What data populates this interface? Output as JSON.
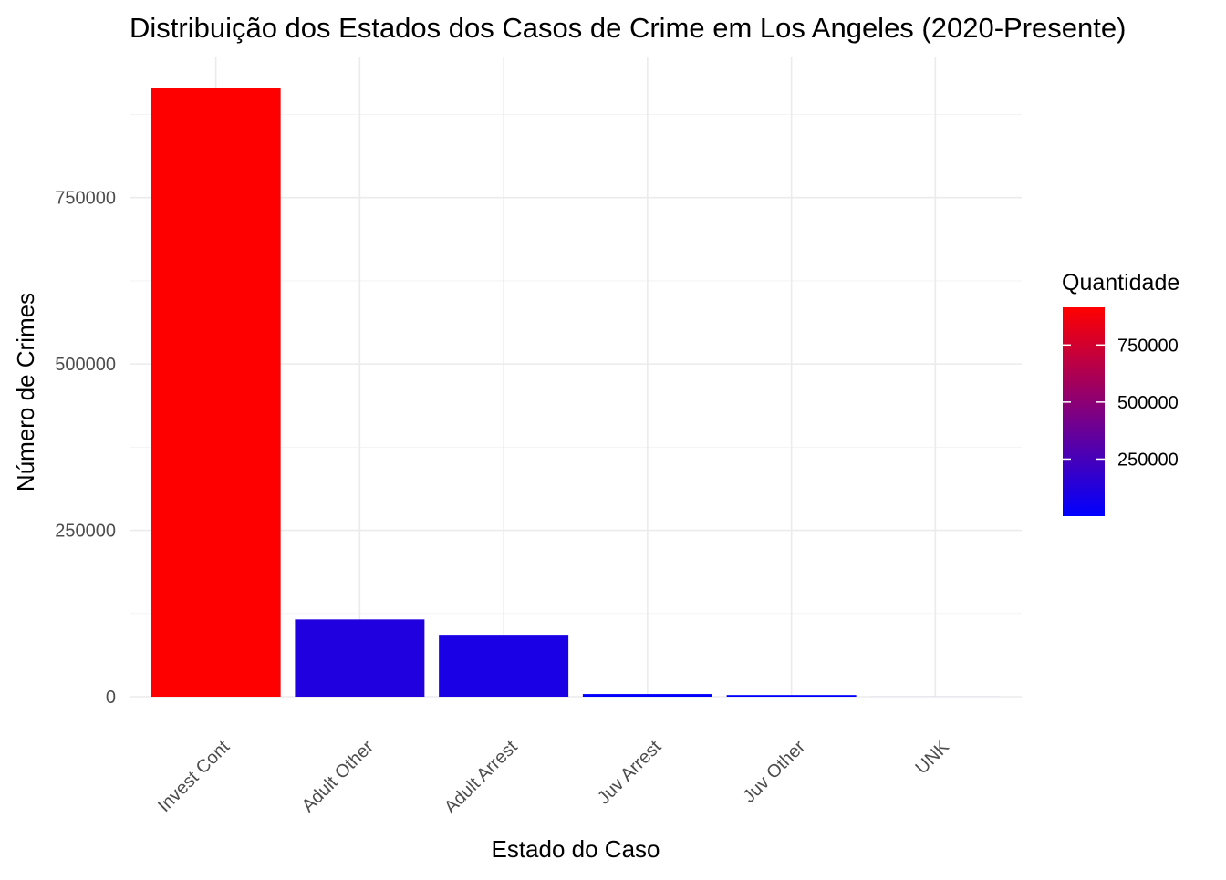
{
  "chart_data": {
    "type": "bar",
    "title": "Distribuição dos Estados dos Casos de Crime em Los Angeles (2020-Presente)",
    "xlabel": "Estado do Caso",
    "ylabel": "Número de Crimes",
    "categories": [
      "Invest Cont",
      "Adult Other",
      "Adult Arrest",
      "Juv Arrest",
      "Juv Other",
      "UNK"
    ],
    "values": [
      915000,
      116000,
      93000,
      4000,
      2500,
      50
    ],
    "ylim": [
      0,
      962000
    ],
    "y_ticks": [
      0,
      250000,
      500000,
      750000
    ],
    "y_tick_labels": [
      "0",
      "250000",
      "500000",
      "750000"
    ],
    "grid": true,
    "fill_scale": {
      "low_color": "#0000ff",
      "high_color": "#ff0000",
      "low_value": 50,
      "high_value": 915000
    },
    "legend": {
      "title": "Quantidade",
      "placement": "right",
      "breaks": [
        250000,
        500000,
        750000
      ],
      "labels": [
        "250000",
        "500000",
        "750000"
      ]
    }
  }
}
